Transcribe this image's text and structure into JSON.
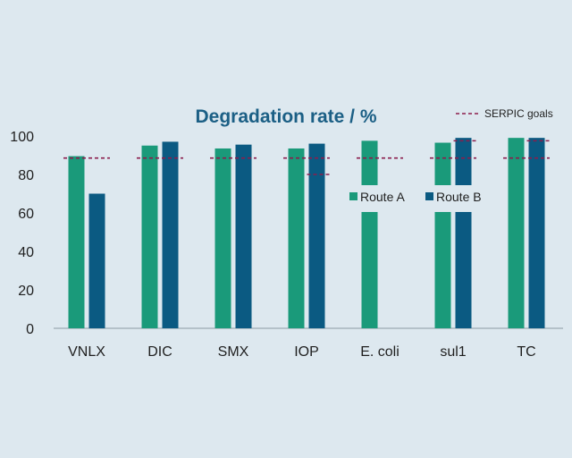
{
  "chart_data": {
    "type": "bar",
    "title": "Degradation rate / %",
    "xlabel": "",
    "ylabel": "",
    "ylim": [
      0,
      100
    ],
    "yticks": [
      0,
      20,
      40,
      60,
      80,
      100
    ],
    "categories": [
      "VNLX",
      "DIC",
      "SMX",
      "IOP",
      "E. coli",
      "sul1",
      "TC"
    ],
    "series": [
      {
        "name": "Route A",
        "color": "#1a9a7a",
        "values": [
          89.5,
          95,
          93.5,
          93.5,
          97.5,
          96.5,
          99
        ]
      },
      {
        "name": "Route B",
        "color": "#0b5a82",
        "values": [
          70,
          97,
          95.5,
          96,
          null,
          99,
          99
        ]
      }
    ],
    "goals": {
      "name": "SERPIC goals",
      "color": "#8b1d4c",
      "values": [
        88.5,
        88.5,
        88.5,
        88.5,
        88.5,
        88.5,
        88.5
      ],
      "extra": [
        {
          "category": "IOP",
          "series": "Route B",
          "value": 80
        },
        {
          "category": "sul1",
          "series": "Route B",
          "value": 97.5
        },
        {
          "category": "TC",
          "series": "Route B",
          "value": 97.5
        }
      ]
    },
    "grid": false,
    "legend_position": "middle-right"
  }
}
